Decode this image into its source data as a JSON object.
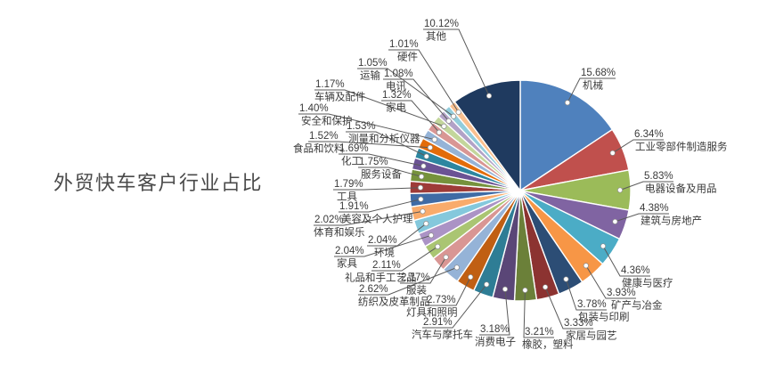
{
  "title": "外贸快车客户行业占比",
  "chart_data": {
    "type": "pie",
    "title": "外贸快车客户行业占比",
    "unit": "%",
    "total": 100.0,
    "start_angle": "top",
    "direction": "clockwise",
    "legend": "none",
    "label_style": "callout: percent above industry name, leader line to white dot on slice",
    "slices": [
      {
        "label": "机械",
        "value": 15.68,
        "color": "#4f81bd"
      },
      {
        "label": "工业零部件制造服务",
        "value": 6.34,
        "color": "#c0504d"
      },
      {
        "label": "电器设备及用品",
        "value": 5.83,
        "color": "#9bbb59"
      },
      {
        "label": "建筑与房地产",
        "value": 4.38,
        "color": "#8064a2"
      },
      {
        "label": "健康与医疗",
        "value": 4.36,
        "color": "#4bacc6"
      },
      {
        "label": "矿产与冶金",
        "value": 3.93,
        "color": "#f79646"
      },
      {
        "label": "包装与印刷",
        "value": 3.78,
        "color": "#2c4d75"
      },
      {
        "label": "家居与园艺",
        "value": 3.33,
        "color": "#8c3331"
      },
      {
        "label": "橡胶，塑料",
        "value": 3.21,
        "color": "#6b8039"
      },
      {
        "label": "消费电子",
        "value": 3.18,
        "color": "#5a4677"
      },
      {
        "label": "汽车与摩托车",
        "value": 2.91,
        "color": "#2e7d95"
      },
      {
        "label": "灯具和照明",
        "value": 2.73,
        "color": "#c05f13"
      },
      {
        "label": "纺织及皮革制品",
        "value": 2.62,
        "color": "#95b3d7"
      },
      {
        "label": "服装",
        "value": 2.17,
        "color": "#d99694"
      },
      {
        "label": "礼品和手工艺品",
        "value": 2.11,
        "color": "#aac572"
      },
      {
        "label": "家具",
        "value": 2.04,
        "color": "#ab93c5"
      },
      {
        "label": "环境",
        "value": 2.04,
        "color": "#84c8dc"
      },
      {
        "label": "体育和娱乐",
        "value": 2.02,
        "color": "#f9ab6b"
      },
      {
        "label": "美容及个人护理",
        "value": 1.91,
        "color": "#3f6ba5"
      },
      {
        "label": "工具",
        "value": 1.79,
        "color": "#9e3b38"
      },
      {
        "label": "服务设备",
        "value": 1.75,
        "color": "#76923c"
      },
      {
        "label": "化工",
        "value": 1.69,
        "color": "#6b5394"
      },
      {
        "label": "测量和分析仪器",
        "value": 1.53,
        "color": "#2d86a0"
      },
      {
        "label": "食品和饮料",
        "value": 1.52,
        "color": "#e36c09"
      },
      {
        "label": "安全和保护",
        "value": 1.4,
        "color": "#95b3d7"
      },
      {
        "label": "家电",
        "value": 1.32,
        "color": "#d99694"
      },
      {
        "label": "车辆及配件",
        "value": 1.17,
        "color": "#c3d69b"
      },
      {
        "label": "电讯",
        "value": 1.08,
        "color": "#b2a2c7"
      },
      {
        "label": "运输",
        "value": 1.05,
        "color": "#92cddc"
      },
      {
        "label": "硬件",
        "value": 1.01,
        "color": "#fac08f"
      },
      {
        "label": "其他",
        "value": 10.12,
        "color": "#1f3a5f"
      }
    ]
  }
}
